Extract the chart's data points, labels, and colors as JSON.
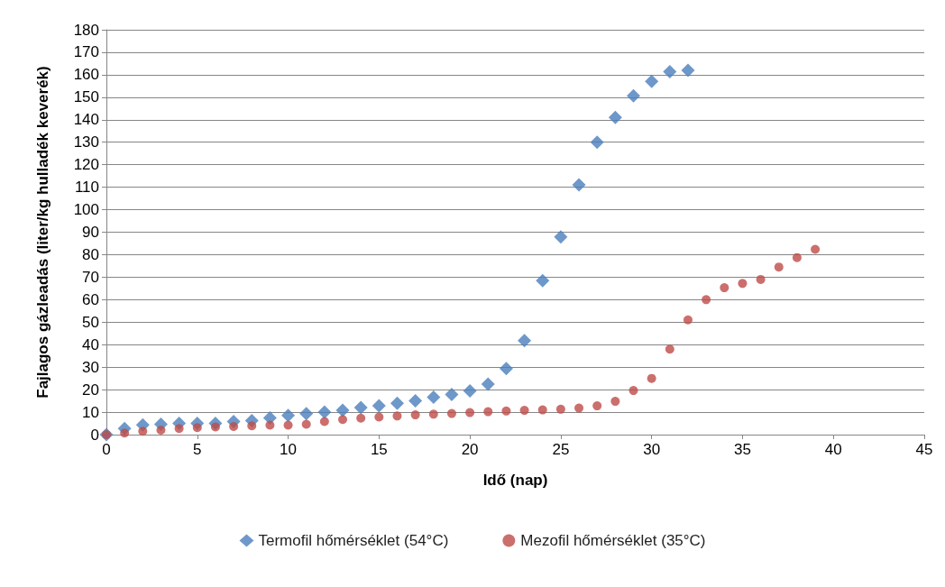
{
  "chart_data": {
    "type": "scatter",
    "xlabel": "Idő (nap)",
    "ylabel": "Fajlagos gázleadás (liter/kg hulladék keverék)",
    "xlim": [
      0,
      45
    ],
    "xticks": [
      0,
      5,
      10,
      15,
      20,
      25,
      30,
      35,
      40,
      45
    ],
    "ylim": [
      0,
      180
    ],
    "yticks": [
      0,
      10,
      20,
      30,
      40,
      50,
      60,
      70,
      80,
      90,
      100,
      110,
      120,
      130,
      140,
      150,
      160,
      170,
      180
    ],
    "grid": "y",
    "legend": "bottom",
    "series": [
      {
        "name": "Termofil hőmérséklet (54°C)",
        "color": "#4a7ebb",
        "marker": "diamond",
        "x": [
          0,
          1,
          2,
          3,
          4,
          5,
          6,
          7,
          8,
          9,
          10,
          11,
          12,
          13,
          14,
          15,
          16,
          17,
          18,
          19,
          20,
          21,
          22,
          23,
          24,
          25,
          26,
          27,
          28,
          29,
          30,
          31,
          32
        ],
        "values": [
          0,
          2.7,
          4.3,
          4.6,
          5,
          5,
          5,
          5.8,
          6.2,
          7.4,
          8.5,
          9.3,
          10,
          10.8,
          12,
          12.8,
          13.9,
          15,
          16.6,
          17.8,
          19.4,
          22.5,
          29.4,
          41.8,
          68.5,
          87.9,
          111,
          130,
          141,
          150.6,
          157,
          161.4,
          162
        ]
      },
      {
        "name": "Mezofil hőmérséklet (35°C)",
        "color": "#be4b48",
        "marker": "circle",
        "x": [
          0,
          1,
          2,
          3,
          4,
          5,
          6,
          7,
          8,
          9,
          10,
          11,
          12,
          13,
          14,
          15,
          16,
          17,
          18,
          19,
          20,
          21,
          22,
          23,
          24,
          25,
          26,
          27,
          28,
          29,
          30,
          31,
          32,
          33,
          34,
          35,
          36,
          37,
          38,
          39
        ],
        "values": [
          0,
          0.7,
          1.5,
          2,
          2.7,
          3.1,
          3.4,
          3.6,
          3.9,
          4.2,
          4.2,
          4.6,
          5.8,
          6.7,
          7.3,
          7.8,
          8.3,
          8.8,
          9.1,
          9.4,
          9.8,
          10.2,
          10.5,
          10.8,
          11,
          11.3,
          11.8,
          12.8,
          14.8,
          19.6,
          25,
          38,
          51,
          60,
          65.3,
          67.2,
          69,
          74.5,
          78.7,
          82.4
        ]
      }
    ]
  }
}
